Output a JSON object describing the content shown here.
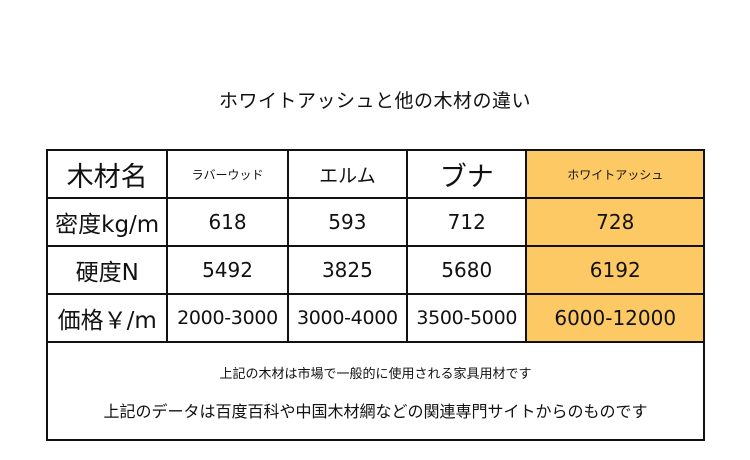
{
  "title": "ホワイトアッシュと他の木材の違い",
  "table": {
    "header": {
      "label": "木材名",
      "woods": [
        "ラバーウッド",
        "エルム",
        "ブナ",
        "ホワイトアッシュ"
      ]
    },
    "rows": [
      {
        "label": "密度kg/m",
        "values": [
          "618",
          "593",
          "712",
          "728"
        ]
      },
      {
        "label": "硬度N",
        "values": [
          "5492",
          "3825",
          "5680",
          "6192"
        ]
      },
      {
        "label": "価格￥/m",
        "values": [
          "2000-3000",
          "3000-4000",
          "3500-5000",
          "6000-12000"
        ]
      }
    ],
    "highlight_color": "#fcc964"
  },
  "notes": [
    "上記の木材は市場で一般的に使用される家具用材です",
    "上記のデータは百度百科や中国木材網などの関連専門サイトからのものです"
  ]
}
